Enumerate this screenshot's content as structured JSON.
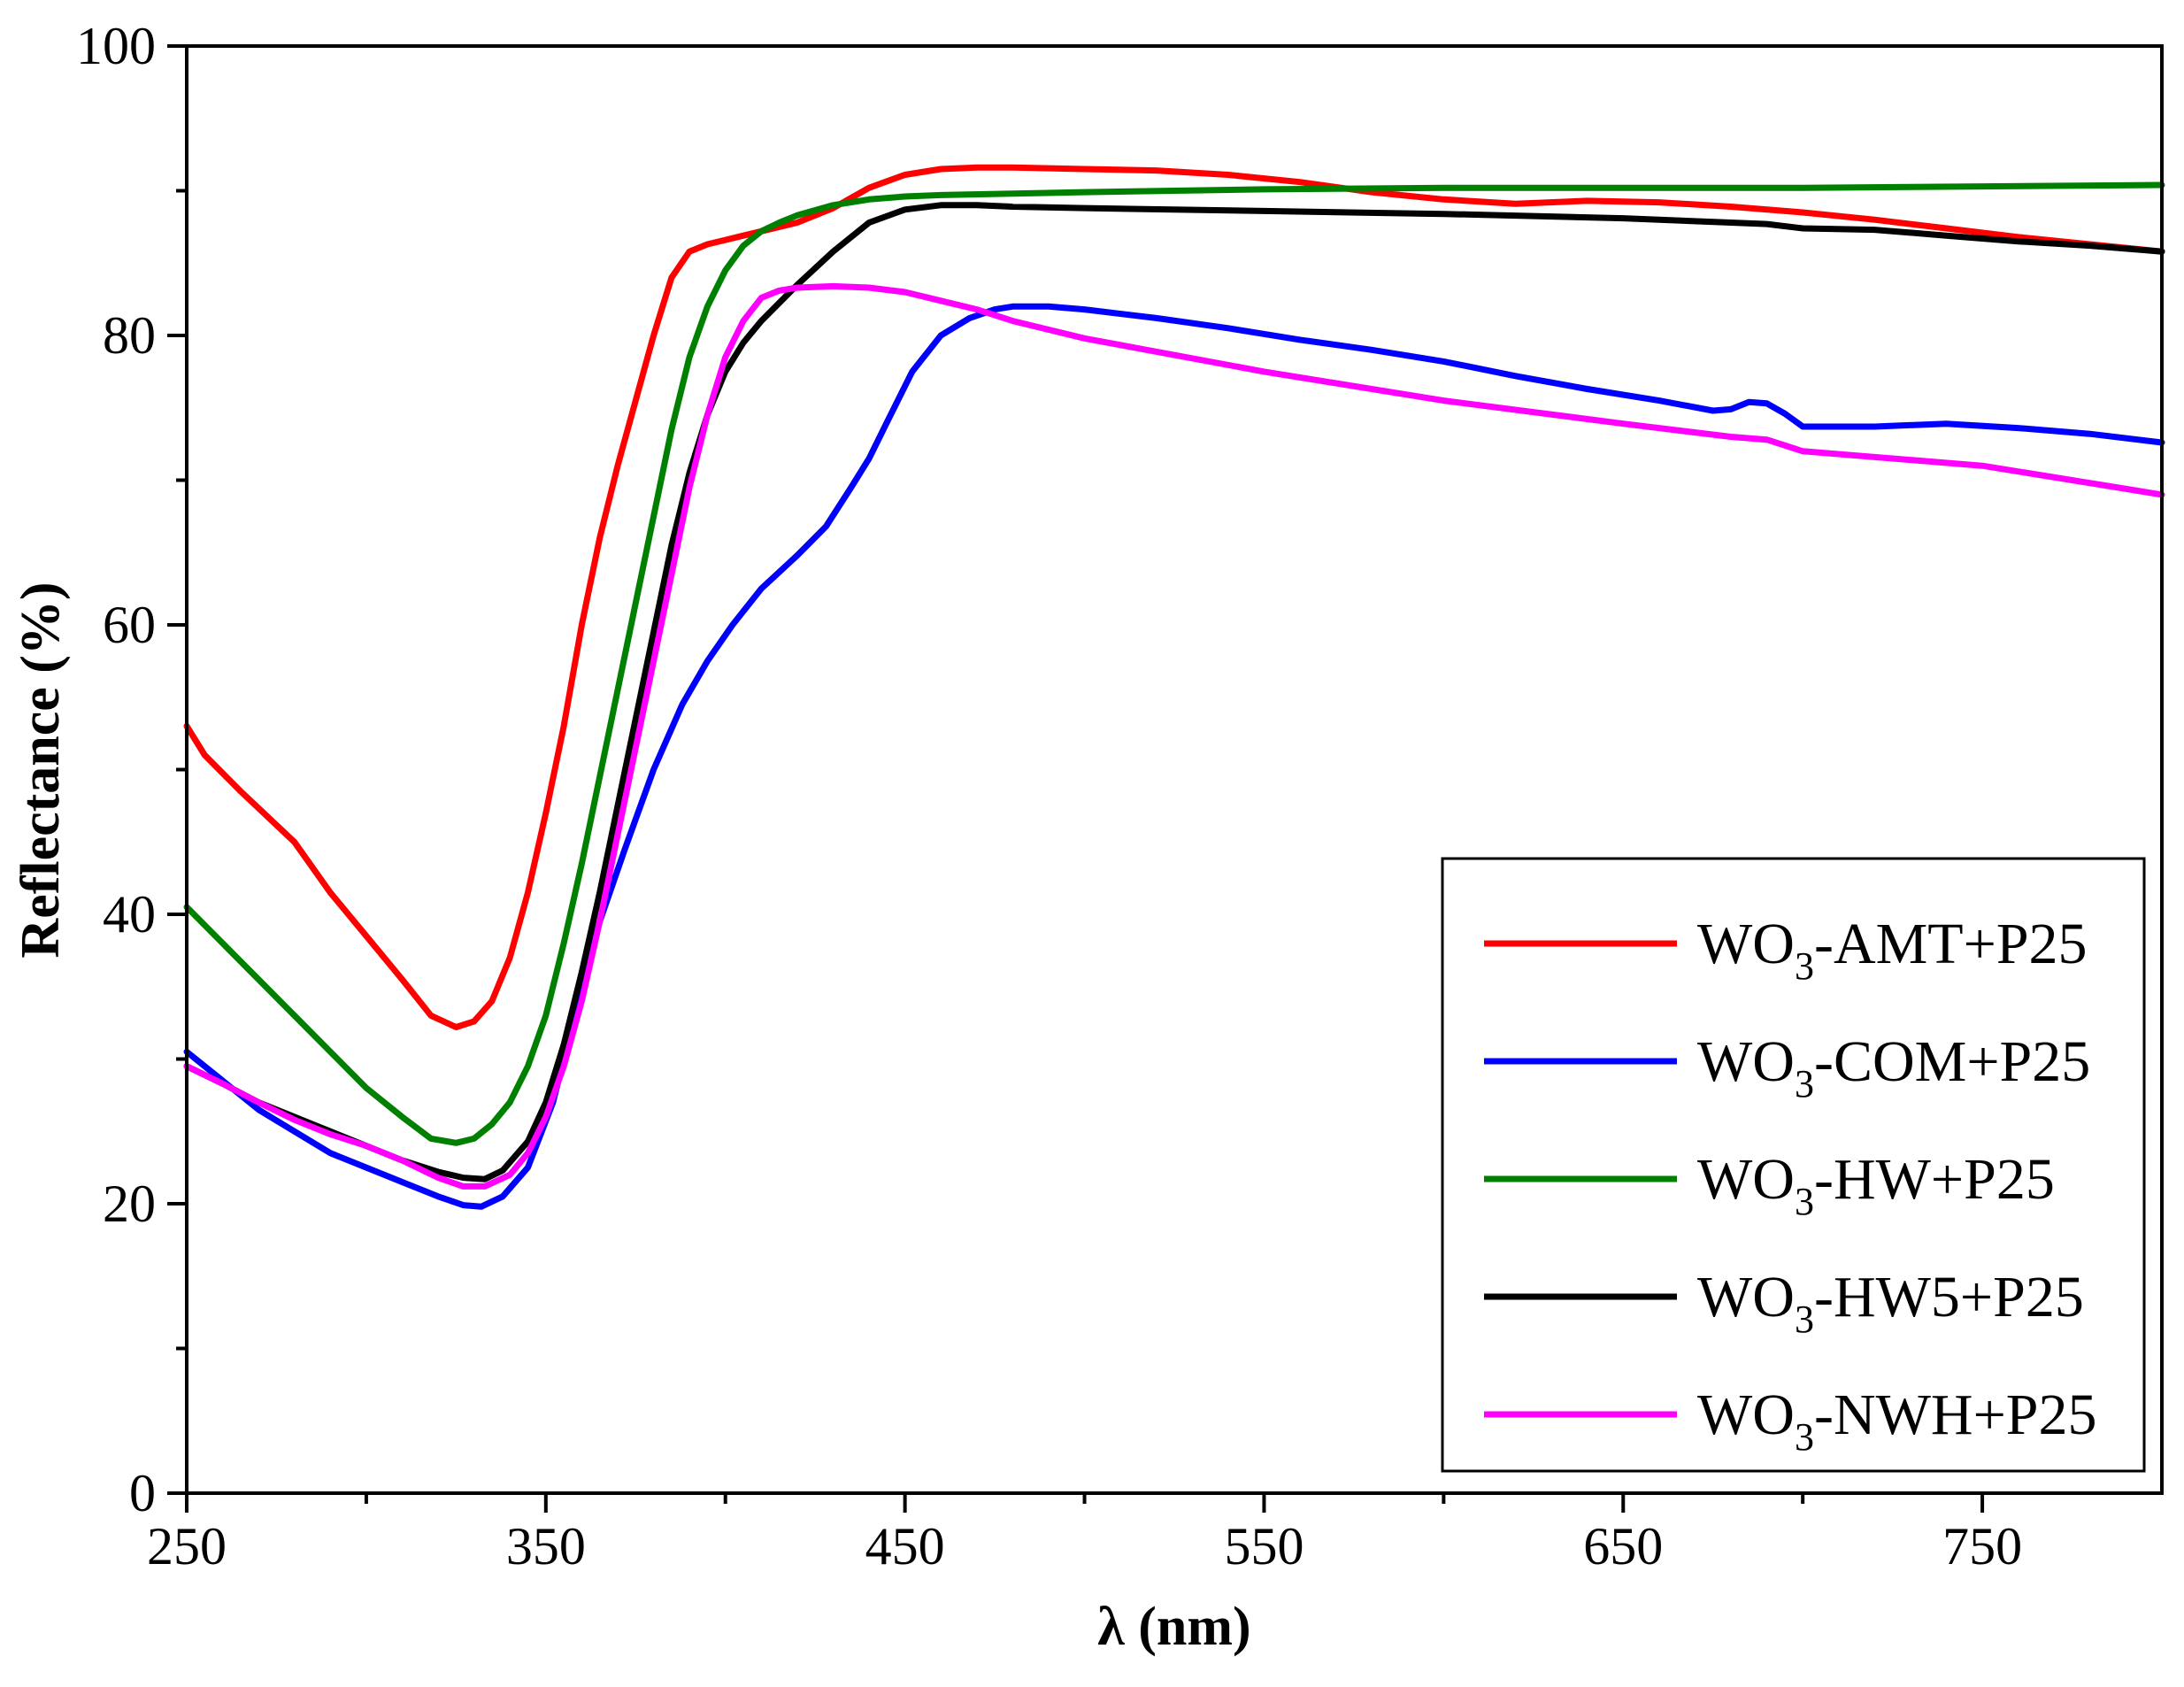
{
  "chart_data": {
    "type": "line",
    "title": "",
    "xlabel": "λ (nm)",
    "ylabel": "Reflectance (%)",
    "xlim": [
      250,
      800
    ],
    "ylim": [
      0,
      100
    ],
    "xticks": [
      250,
      350,
      450,
      550,
      650,
      750
    ],
    "yticks": [
      0,
      20,
      40,
      60,
      80,
      100
    ],
    "xtick_labels": [
      "250",
      "350",
      "450",
      "550",
      "650",
      "750"
    ],
    "ytick_labels": [
      "0",
      "20",
      "40",
      "60",
      "80",
      "100"
    ],
    "legend_position": "bottom-right",
    "series": [
      {
        "name": "WO3-AMT+P25",
        "label_main": "WO",
        "label_sub": "3",
        "label_rest": "-AMT+P25",
        "color": "#ff0000",
        "x": [
          250,
          255,
          265,
          280,
          290,
          300,
          310,
          318,
          325,
          330,
          335,
          340,
          345,
          350,
          355,
          360,
          365,
          370,
          375,
          380,
          385,
          390,
          395,
          400,
          405,
          410,
          420,
          430,
          440,
          450,
          460,
          470,
          480,
          500,
          520,
          540,
          560,
          580,
          600,
          620,
          640,
          660,
          680,
          700,
          720,
          740,
          760,
          780,
          800
        ],
        "y": [
          53.0,
          51.0,
          48.5,
          45.0,
          41.5,
          38.5,
          35.5,
          33.0,
          32.2,
          32.6,
          34.0,
          37.0,
          41.5,
          47.0,
          53.0,
          60.0,
          66.0,
          71.0,
          75.5,
          80.0,
          84.0,
          85.8,
          86.3,
          86.6,
          86.9,
          87.2,
          87.8,
          88.8,
          90.2,
          91.1,
          91.5,
          91.6,
          91.6,
          91.5,
          91.4,
          91.1,
          90.6,
          89.9,
          89.4,
          89.1,
          89.3,
          89.2,
          88.9,
          88.5,
          88.0,
          87.4,
          86.8,
          86.3,
          85.8
        ]
      },
      {
        "name": "WO3-COM+P25",
        "label_main": "WO",
        "label_sub": "3",
        "label_rest": "-COM+P25",
        "color": "#0000ff",
        "x": [
          250,
          260,
          270,
          280,
          290,
          300,
          310,
          320,
          327,
          332,
          338,
          345,
          352,
          358,
          365,
          372,
          380,
          388,
          395,
          402,
          410,
          420,
          428,
          435,
          440,
          445,
          452,
          460,
          468,
          475,
          480,
          490,
          500,
          520,
          540,
          560,
          580,
          600,
          620,
          640,
          660,
          675,
          680,
          685,
          690,
          695,
          700,
          720,
          740,
          760,
          780,
          800
        ],
        "y": [
          30.5,
          28.5,
          26.5,
          25.0,
          23.5,
          22.5,
          21.5,
          20.5,
          19.9,
          19.8,
          20.5,
          22.5,
          27.0,
          33.0,
          39.5,
          44.5,
          50.0,
          54.5,
          57.5,
          60.0,
          62.5,
          64.8,
          66.8,
          69.5,
          71.5,
          74.0,
          77.5,
          80.0,
          81.2,
          81.8,
          82.0,
          82.0,
          81.8,
          81.2,
          80.5,
          79.7,
          79.0,
          78.2,
          77.2,
          76.3,
          75.5,
          74.8,
          74.9,
          75.4,
          75.3,
          74.6,
          73.7,
          73.7,
          73.9,
          73.6,
          73.2,
          72.6
        ]
      },
      {
        "name": "WO3-HW+P25",
        "label_main": "WO",
        "label_sub": "3",
        "label_rest": "-HW+P25",
        "color": "#008000",
        "x": [
          250,
          260,
          270,
          280,
          290,
          300,
          310,
          318,
          325,
          330,
          335,
          340,
          345,
          350,
          355,
          360,
          365,
          370,
          375,
          380,
          385,
          390,
          395,
          400,
          405,
          410,
          415,
          420,
          430,
          440,
          450,
          460,
          480,
          500,
          550,
          600,
          650,
          700,
          750,
          800
        ],
        "y": [
          40.5,
          38.0,
          35.5,
          33.0,
          30.5,
          28.0,
          26.0,
          24.5,
          24.2,
          24.5,
          25.5,
          27.0,
          29.5,
          33.0,
          38.0,
          43.5,
          49.5,
          55.5,
          61.5,
          67.5,
          73.5,
          78.5,
          82.0,
          84.5,
          86.2,
          87.2,
          87.8,
          88.3,
          89.0,
          89.4,
          89.6,
          89.7,
          89.8,
          89.9,
          90.1,
          90.2,
          90.2,
          90.2,
          90.3,
          90.4
        ]
      },
      {
        "name": "WO3-HW5+P25",
        "label_main": "WO",
        "label_sub": "3",
        "label_rest": "-HW5+P25",
        "color": "#000000",
        "x": [
          250,
          260,
          270,
          280,
          290,
          300,
          310,
          320,
          327,
          333,
          338,
          345,
          350,
          355,
          360,
          365,
          370,
          375,
          380,
          385,
          390,
          395,
          400,
          405,
          410,
          420,
          430,
          440,
          450,
          460,
          470,
          480,
          500,
          550,
          600,
          650,
          680,
          690,
          700,
          720,
          740,
          760,
          780,
          800
        ],
        "y": [
          29.5,
          28.3,
          27.0,
          26.0,
          25.0,
          24.0,
          23.0,
          22.2,
          21.8,
          21.7,
          22.3,
          24.3,
          27.0,
          31.0,
          36.0,
          41.5,
          47.5,
          53.5,
          59.5,
          65.5,
          70.5,
          74.5,
          77.5,
          79.5,
          81.0,
          83.5,
          85.8,
          87.8,
          88.7,
          89.0,
          89.0,
          88.9,
          88.8,
          88.6,
          88.4,
          88.1,
          87.8,
          87.7,
          87.4,
          87.3,
          86.9,
          86.5,
          86.2,
          85.8
        ]
      },
      {
        "name": "WO3-NWH+P25",
        "label_main": "WO",
        "label_sub": "3",
        "label_rest": "-NWH+P25",
        "color": "#ff00ff",
        "x": [
          250,
          260,
          270,
          280,
          290,
          300,
          310,
          320,
          327,
          333,
          340,
          345,
          350,
          355,
          360,
          365,
          370,
          375,
          380,
          385,
          390,
          395,
          400,
          405,
          410,
          415,
          420,
          430,
          440,
          450,
          460,
          470,
          480,
          500,
          550,
          600,
          650,
          680,
          690,
          700,
          750,
          800
        ],
        "y": [
          29.5,
          28.3,
          27.0,
          25.8,
          24.8,
          24.0,
          23.0,
          21.8,
          21.2,
          21.2,
          22.0,
          23.5,
          26.0,
          29.5,
          34.0,
          39.5,
          45.5,
          51.5,
          57.5,
          63.5,
          69.5,
          74.5,
          78.5,
          81.0,
          82.6,
          83.1,
          83.3,
          83.4,
          83.3,
          83.0,
          82.4,
          81.8,
          81.0,
          79.8,
          77.5,
          75.5,
          73.9,
          73.0,
          72.8,
          72.0,
          71.0,
          69.0
        ]
      }
    ]
  }
}
